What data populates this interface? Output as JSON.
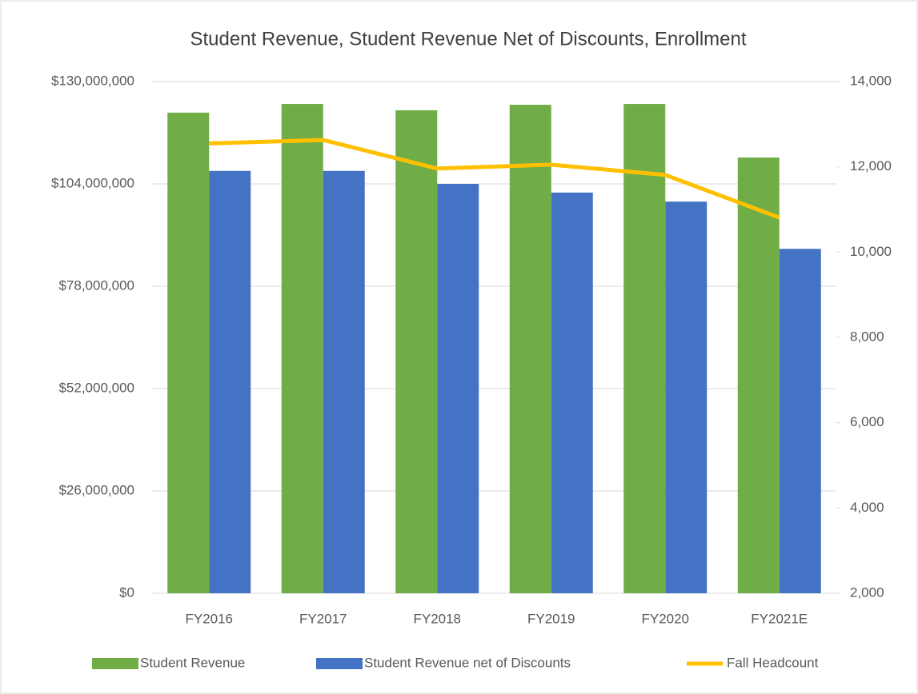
{
  "chart_data": {
    "type": "bar",
    "title": "Student Revenue, Student Revenue Net of Discounts, Enrollment",
    "categories": [
      "FY2016",
      "FY2017",
      "FY2018",
      "FY2019",
      "FY2020",
      "FY2021E"
    ],
    "series": [
      {
        "name": "Student Revenue",
        "color": "#70ad47",
        "values": [
          122100000,
          124300000,
          122700000,
          124100000,
          124300000,
          110700000
        ]
      },
      {
        "name": "Student Revenue net of Discounts",
        "color": "#4472c4",
        "values": [
          107300000,
          107300000,
          104000000,
          101800000,
          99500000,
          87500000
        ]
      },
      {
        "name": "Fall Headcount",
        "color": "#ffc000",
        "type": "line",
        "axis": "y2",
        "values": [
          12550,
          12630,
          11960,
          12050,
          11810,
          10810
        ]
      }
    ],
    "ylim": [
      0,
      130000000
    ],
    "yticks": [
      {
        "value": 0,
        "label": "$0"
      },
      {
        "value": 26000000,
        "label": "$26,000,000"
      },
      {
        "value": 52000000,
        "label": "$52,000,000"
      },
      {
        "value": 78000000,
        "label": "$78,000,000"
      },
      {
        "value": 104000000,
        "label": "$104,000,000"
      },
      {
        "value": 130000000,
        "label": "$130,000,000"
      }
    ],
    "y2lim": [
      2000,
      14000
    ],
    "y2ticks": [
      {
        "value": 2000,
        "label": "2,000"
      },
      {
        "value": 4000,
        "label": "4,000"
      },
      {
        "value": 6000,
        "label": "6,000"
      },
      {
        "value": 8000,
        "label": "8,000"
      },
      {
        "value": 10000,
        "label": "10,000"
      },
      {
        "value": 12000,
        "label": "12,000"
      },
      {
        "value": 14000,
        "label": "14,000"
      }
    ],
    "grid": true,
    "legend": "bottom"
  }
}
